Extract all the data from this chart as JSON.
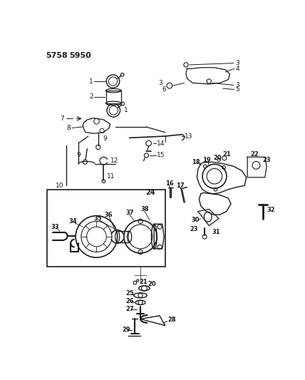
{
  "bg_color": "#ffffff",
  "lc": "#1a1a1a",
  "fig_width": 4.28,
  "fig_height": 5.33,
  "dpi": 100,
  "title1": "5758",
  "title2": "5950"
}
